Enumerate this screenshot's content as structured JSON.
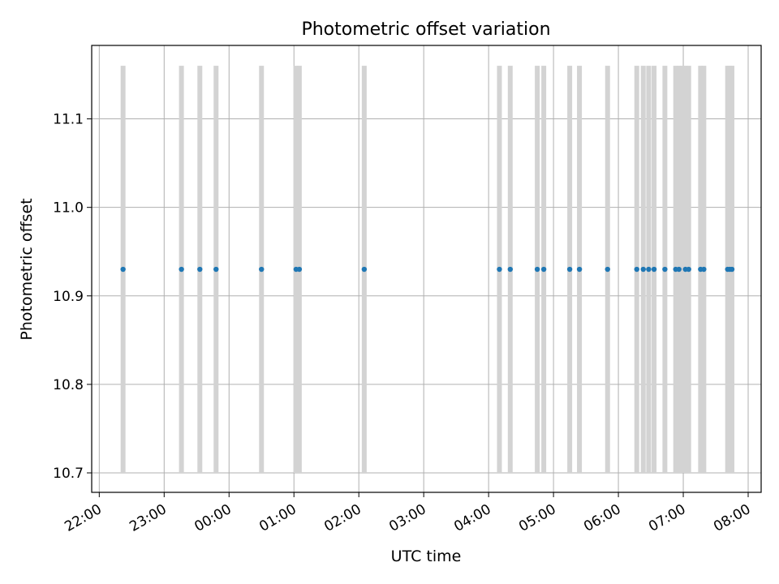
{
  "chart_data": {
    "type": "scatter",
    "title": "Photometric offset variation",
    "xlabel": "UTC time",
    "ylabel": "Photometric offset",
    "xlim": [
      "21:53",
      "08:12"
    ],
    "ylim": [
      10.678,
      11.183
    ],
    "grid": true,
    "x_ticks": [
      "22:00",
      "23:00",
      "00:00",
      "01:00",
      "02:00",
      "03:00",
      "04:00",
      "05:00",
      "06:00",
      "07:00",
      "08:00"
    ],
    "y_ticks": [
      10.7,
      10.8,
      10.9,
      11.0,
      11.1
    ],
    "points_x": [
      "22:22",
      "23:16",
      "23:33",
      "23:48",
      "00:30",
      "01:02",
      "01:05",
      "02:05",
      "04:10",
      "04:20",
      "04:45",
      "04:51",
      "05:15",
      "05:24",
      "05:50",
      "06:17",
      "06:23",
      "06:28",
      "06:33",
      "06:43",
      "06:53",
      "06:56",
      "07:02",
      "07:05",
      "07:16",
      "07:19",
      "07:41",
      "07:43",
      "07:45"
    ],
    "points_y": 10.93,
    "bars_x": [
      "22:22",
      "23:16",
      "23:33",
      "23:48",
      "00:30",
      "01:02",
      "01:05",
      "02:05",
      "04:10",
      "04:20",
      "04:45",
      "04:51",
      "05:15",
      "05:24",
      "05:50",
      "06:17",
      "06:23",
      "06:28",
      "06:33",
      "06:43",
      "06:53",
      "06:56",
      "06:59",
      "07:02",
      "07:05",
      "07:16",
      "07:19",
      "07:41",
      "07:43",
      "07:45"
    ],
    "bars_range": [
      10.7,
      11.16
    ],
    "colors": {
      "points": "#1f77b4",
      "bars": "#d3d3d3",
      "grid": "#b0b0b0"
    }
  }
}
